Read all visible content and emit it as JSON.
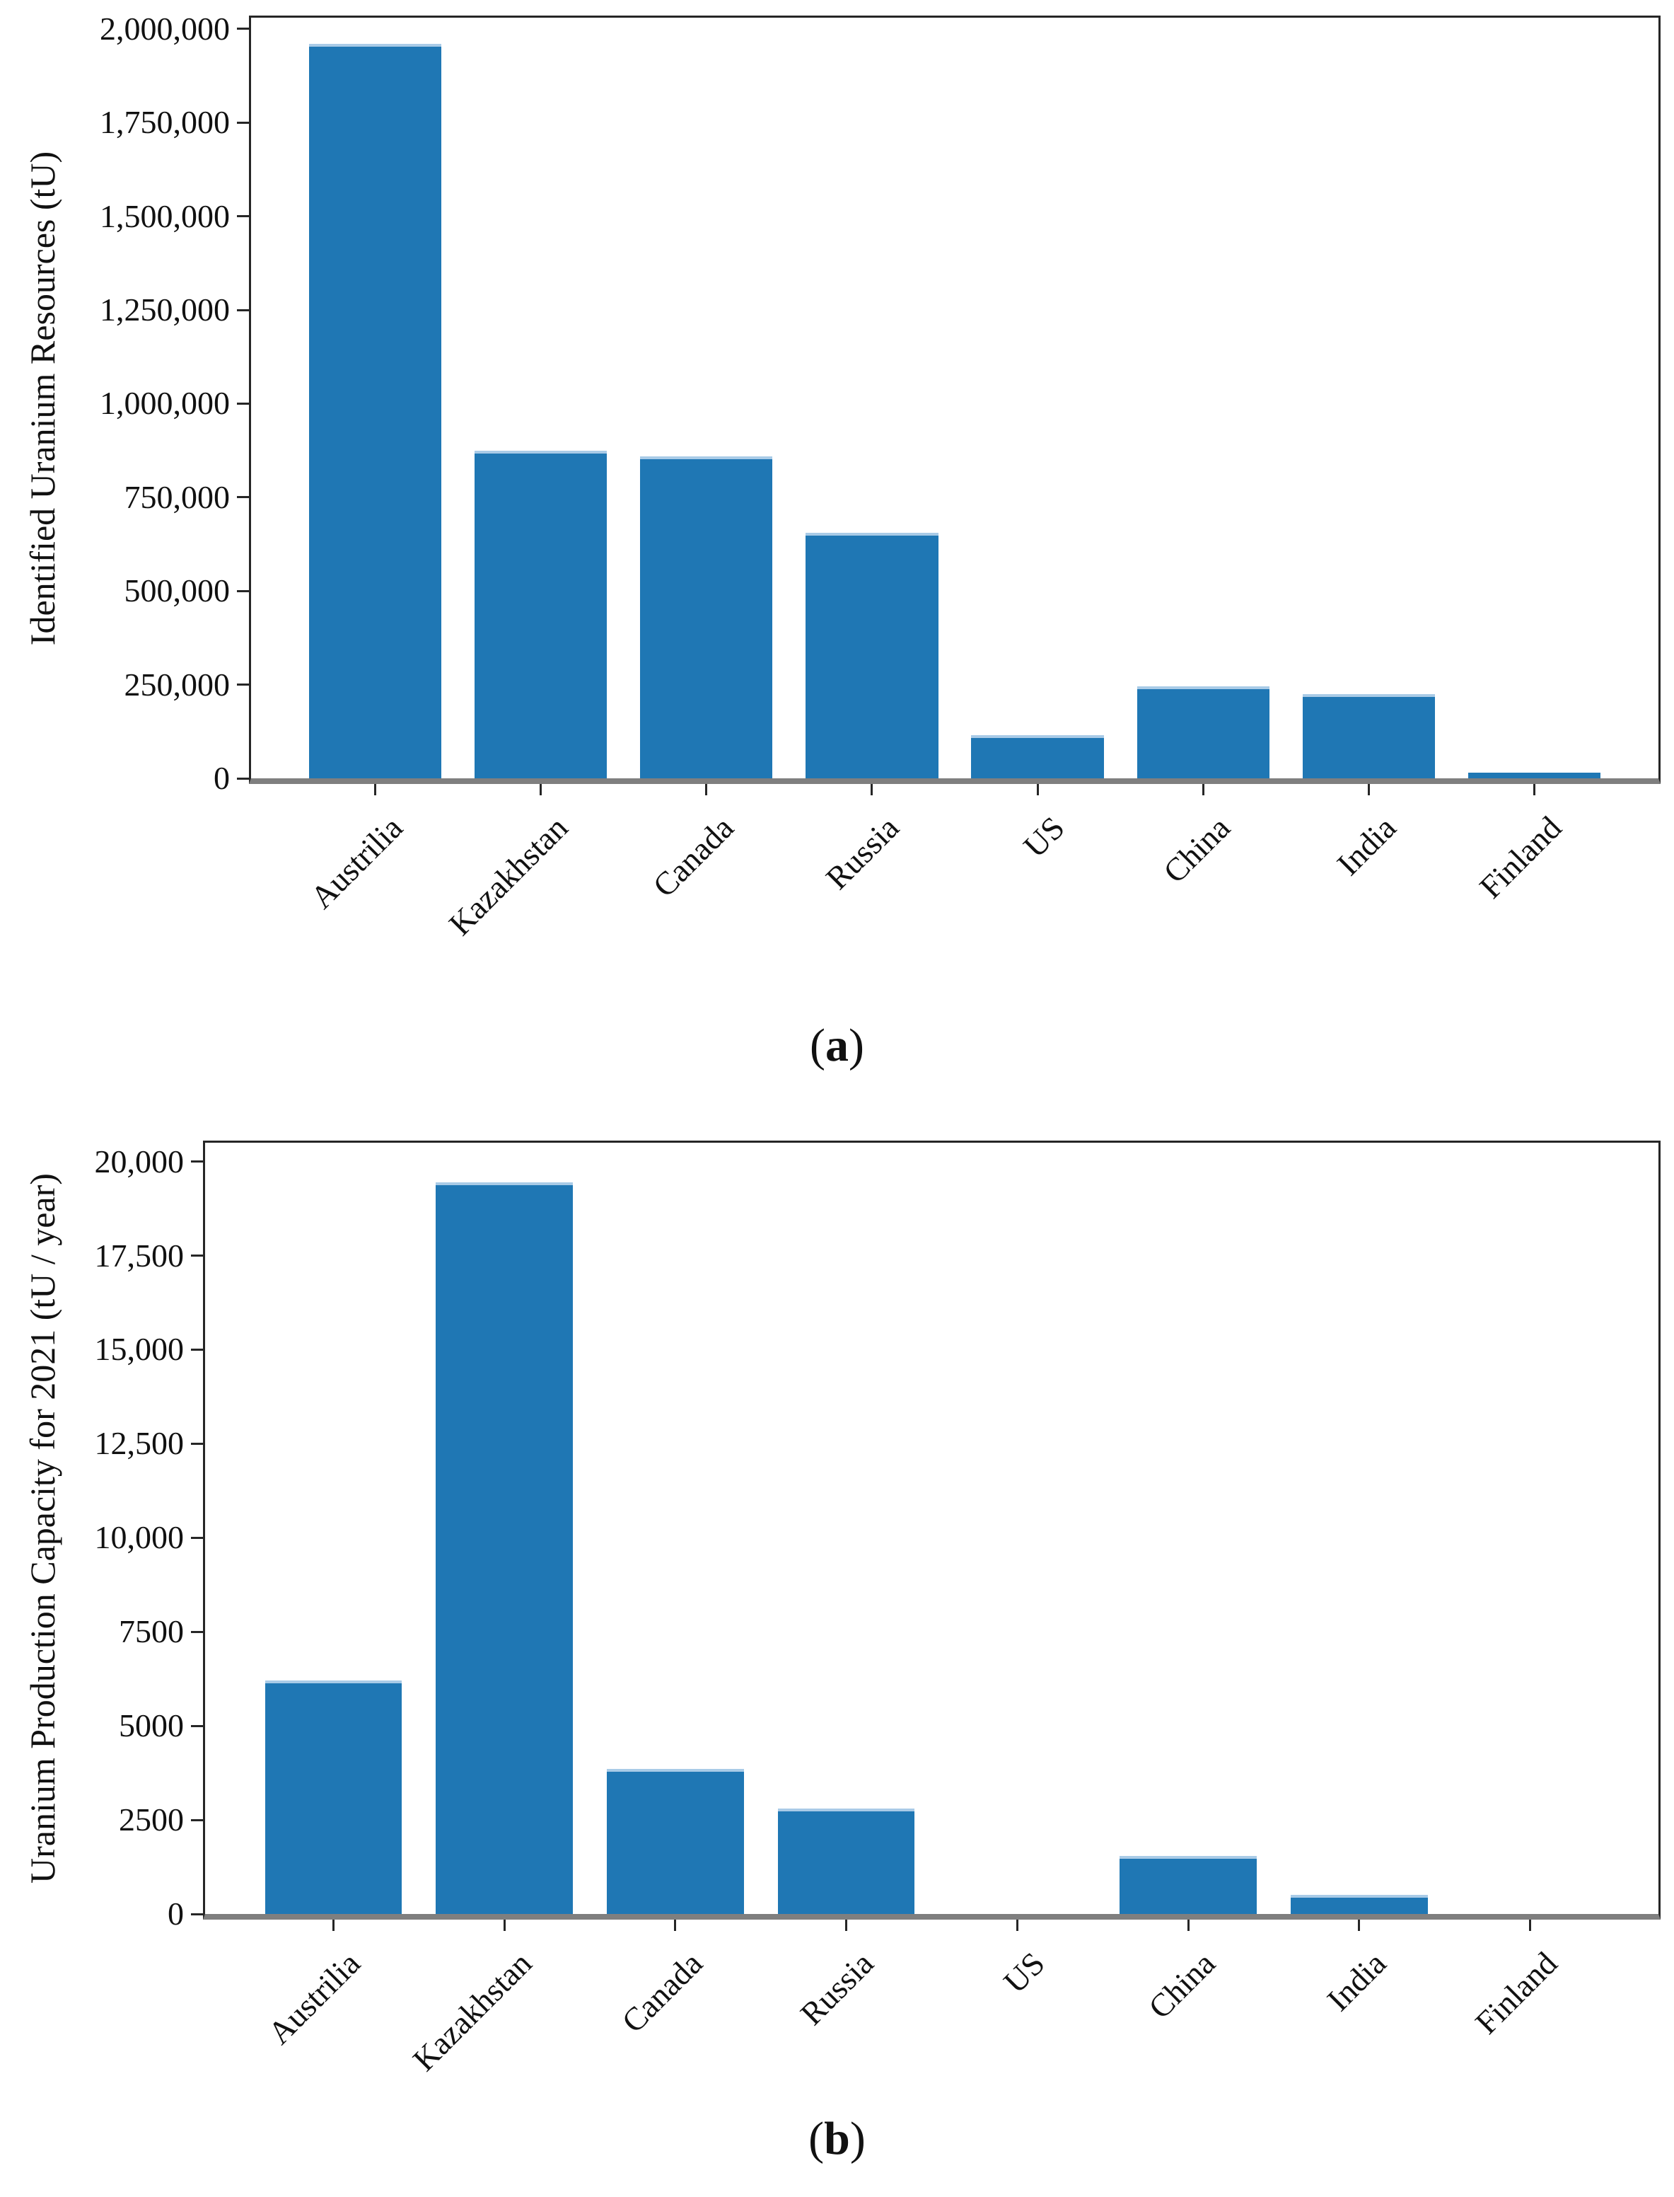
{
  "colors": {
    "bar": "#1f77b4",
    "bar_top_edge": "#a9cbe7",
    "spine": "#262626",
    "baseline": "#7f7f7f",
    "text": "#111111"
  },
  "chart_data": [
    {
      "type": "bar",
      "ylabel": "Identified Uranium Resources (tU)",
      "xlabel": "",
      "categories": [
        "Austrilia",
        "Kazakhstan",
        "Canada",
        "Russia",
        "US",
        "China",
        "India",
        "Finland"
      ],
      "values": [
        1960000,
        875000,
        860000,
        655000,
        115000,
        245000,
        225000,
        15000
      ],
      "ylim": [
        0,
        2030000
      ],
      "grid": false,
      "legend": "none",
      "yticks": [
        {
          "value": 2000000,
          "label": "2,000,000"
        },
        {
          "value": 1750000,
          "label": "1,750,000"
        },
        {
          "value": 1500000,
          "label": "1,500,000"
        },
        {
          "value": 1250000,
          "label": "1,250,000"
        },
        {
          "value": 1000000,
          "label": "1,000,000"
        },
        {
          "value": 750000,
          "label": "750,000"
        },
        {
          "value": 500000,
          "label": "500,000"
        },
        {
          "value": 250000,
          "label": "250,000"
        },
        {
          "value": 0,
          "label": "0"
        }
      ],
      "caption": {
        "open": "(",
        "letter": "a",
        "close": ")"
      }
    },
    {
      "type": "bar",
      "ylabel": "Uranium Production Capacity for 2021 (tU / year)",
      "xlabel": "",
      "categories": [
        "Austrilia",
        "Kazakhstan",
        "Canada",
        "Russia",
        "US",
        "China",
        "India",
        "Finland"
      ],
      "values": [
        6200,
        19450,
        3850,
        2800,
        0,
        1550,
        500,
        0
      ],
      "ylim": [
        0,
        20500
      ],
      "grid": false,
      "legend": "none",
      "yticks": [
        {
          "value": 20000,
          "label": "20,000"
        },
        {
          "value": 17500,
          "label": "17,500"
        },
        {
          "value": 15000,
          "label": "15,000"
        },
        {
          "value": 12500,
          "label": "12,500"
        },
        {
          "value": 10000,
          "label": "10,000"
        },
        {
          "value": 7500,
          "label": "7500"
        },
        {
          "value": 5000,
          "label": "5000"
        },
        {
          "value": 2500,
          "label": "2500"
        },
        {
          "value": 0,
          "label": "0"
        }
      ],
      "caption": {
        "open": "(",
        "letter": "b",
        "close": ")"
      }
    }
  ]
}
